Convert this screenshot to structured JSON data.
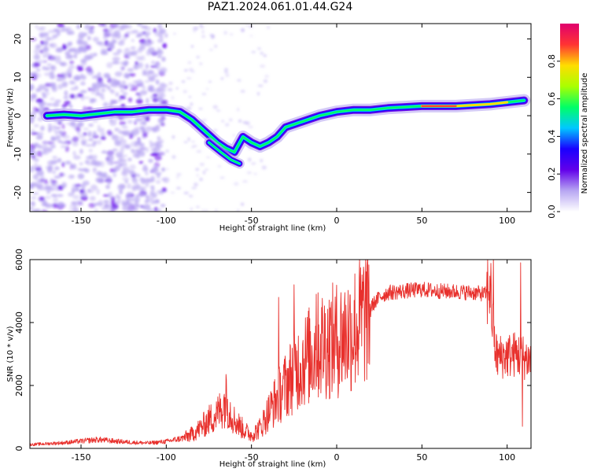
{
  "title": "PAZ1.2024.061.01.44.G24",
  "chart_data": [
    {
      "type": "heatmap",
      "xlabel": "Height of straight line (km)",
      "ylabel": "Frequency (Hz)",
      "xlim": [
        -180,
        114
      ],
      "ylim": [
        -25,
        24
      ],
      "xticks": [
        -150,
        -100,
        -50,
        0,
        50,
        100
      ],
      "yticks": [
        -20,
        -10,
        0,
        10,
        20
      ],
      "grid": false,
      "colorbar": {
        "label": "Normalized spectral amplitude",
        "ticks": [
          "0.0",
          "0.2",
          "0.4",
          "0.6",
          "0.8"
        ],
        "colormap": [
          "#ffffff",
          "#b7a6f2",
          "#6200ea",
          "#1a00ff",
          "#00c8ff",
          "#00ff66",
          "#aaff00",
          "#ffdd00",
          "#ff3333",
          "#e0006e"
        ]
      },
      "ridge": [
        {
          "x": -170,
          "y": 0.0
        },
        {
          "x": -160,
          "y": 0.3
        },
        {
          "x": -150,
          "y": 0.0
        },
        {
          "x": -140,
          "y": 0.5
        },
        {
          "x": -130,
          "y": 1.0
        },
        {
          "x": -120,
          "y": 1.0
        },
        {
          "x": -110,
          "y": 1.5
        },
        {
          "x": -100,
          "y": 1.5
        },
        {
          "x": -92,
          "y": 1.0
        },
        {
          "x": -85,
          "y": -1.0
        },
        {
          "x": -80,
          "y": -3.0
        },
        {
          "x": -75,
          "y": -5.0
        },
        {
          "x": -70,
          "y": -7.0
        },
        {
          "x": -65,
          "y": -8.5
        },
        {
          "x": -60,
          "y": -9.5
        },
        {
          "x": -55,
          "y": -5.5
        },
        {
          "x": -50,
          "y": -7.0
        },
        {
          "x": -45,
          "y": -8.0
        },
        {
          "x": -40,
          "y": -7.0
        },
        {
          "x": -35,
          "y": -5.5
        },
        {
          "x": -30,
          "y": -3.0
        },
        {
          "x": -20,
          "y": -1.5
        },
        {
          "x": -10,
          "y": 0.0
        },
        {
          "x": 0,
          "y": 1.0
        },
        {
          "x": 10,
          "y": 1.5
        },
        {
          "x": 20,
          "y": 1.5
        },
        {
          "x": 30,
          "y": 2.0
        },
        {
          "x": 50,
          "y": 2.5
        },
        {
          "x": 70,
          "y": 2.5
        },
        {
          "x": 90,
          "y": 3.0
        },
        {
          "x": 100,
          "y": 3.5
        },
        {
          "x": 110,
          "y": 4.0
        }
      ],
      "secondary_ridge": [
        {
          "x": -75,
          "y": -7.0
        },
        {
          "x": -68,
          "y": -9.5
        },
        {
          "x": -62,
          "y": -11.5
        },
        {
          "x": -57,
          "y": -12.5
        }
      ]
    },
    {
      "type": "line",
      "xlabel": "Height of straight line (km)",
      "ylabel": "SNR (10 * v/v)",
      "xlim": [
        -180,
        114
      ],
      "ylim": [
        0,
        6000
      ],
      "xticks": [
        -150,
        -100,
        -50,
        0,
        50,
        100
      ],
      "yticks": [
        0,
        2000,
        4000,
        6000
      ],
      "grid": false,
      "color": "#e8302c",
      "x": [
        -180,
        -170,
        -160,
        -150,
        -140,
        -130,
        -120,
        -110,
        -100,
        -90,
        -85,
        -80,
        -75,
        -70,
        -65,
        -60,
        -55,
        -50,
        -45,
        -40,
        -35,
        -30,
        -25,
        -20,
        -15,
        -10,
        -5,
        0,
        5,
        10,
        15,
        20,
        25,
        30,
        40,
        50,
        60,
        70,
        80,
        88,
        90,
        92,
        94,
        100,
        105,
        110,
        114
      ],
      "y": [
        120,
        150,
        180,
        230,
        280,
        230,
        190,
        170,
        220,
        330,
        450,
        650,
        900,
        1100,
        1500,
        900,
        620,
        420,
        650,
        1150,
        1600,
        2000,
        2450,
        2750,
        3000,
        3300,
        3350,
        3450,
        3600,
        3800,
        4100,
        4500,
        4800,
        4950,
        5000,
        5050,
        5000,
        4980,
        4950,
        4900,
        5300,
        3500,
        2900,
        2950,
        3000,
        2900,
        2800
      ],
      "spikes": [
        {
          "x": -65,
          "y": 2350
        },
        {
          "x": -34,
          "y": 4800
        },
        {
          "x": -25,
          "y": 5200
        },
        {
          "x": -12,
          "y": 4900
        },
        {
          "x": 16,
          "y": 5600
        },
        {
          "x": 92,
          "y": 6000
        },
        {
          "x": 108,
          "y": 5900
        },
        {
          "x": 109,
          "y": 700
        }
      ]
    }
  ]
}
